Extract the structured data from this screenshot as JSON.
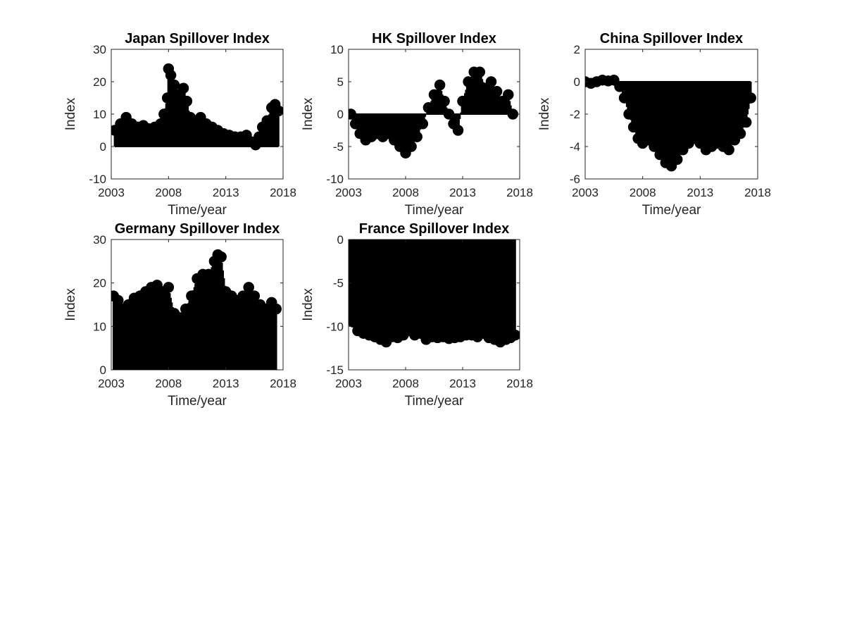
{
  "chart_data": [
    {
      "type": "scatter",
      "title": "Japan Spillover Index",
      "xlabel": "Time/year",
      "ylabel": "Index",
      "xlim": [
        2003,
        2018
      ],
      "ylim": [
        -10,
        30
      ],
      "xticks": [
        "2003",
        "2008",
        "2013",
        "2018"
      ],
      "yticks": [
        "-10",
        "0",
        "10",
        "20",
        "30"
      ],
      "baseline": 0,
      "series": [
        {
          "x": [
            2003.3,
            2003.8,
            2004.3,
            2004.8,
            2005.3,
            2005.8,
            2006.3,
            2006.8,
            2007.3,
            2007.6,
            2007.9,
            2008.0,
            2008.2,
            2008.5,
            2008.9,
            2009.3,
            2009.6,
            2009.9,
            2010.3,
            2010.8,
            2011.3,
            2011.8,
            2012.3,
            2012.8,
            2013.3,
            2013.8,
            2014.3,
            2014.8,
            2015.2,
            2015.6,
            2015.9,
            2016.2,
            2016.6,
            2017.0,
            2017.3,
            2017.6
          ],
          "y": [
            5,
            7,
            9,
            7,
            6,
            6.5,
            5.5,
            6,
            7,
            10,
            15,
            24,
            22,
            19,
            16,
            18,
            14,
            9,
            8,
            9,
            7,
            6,
            5,
            4,
            3.5,
            3,
            3,
            3.5,
            1.5,
            0.5,
            3,
            6,
            8,
            12,
            13,
            11
          ]
        }
      ]
    },
    {
      "type": "scatter",
      "title": "HK Spillover Index",
      "xlabel": "Time/year",
      "ylabel": "Index",
      "xlim": [
        2003,
        2018
      ],
      "ylim": [
        -10,
        10
      ],
      "xticks": [
        "2003",
        "2008",
        "2013",
        "2018"
      ],
      "yticks": [
        "-10",
        "-5",
        "0",
        "5",
        "10"
      ],
      "baseline": 0,
      "series": [
        {
          "x": [
            2003.2,
            2003.6,
            2004.0,
            2004.5,
            2005.0,
            2005.5,
            2006.0,
            2006.5,
            2007.0,
            2007.5,
            2008.0,
            2008.5,
            2009.0,
            2009.5,
            2010.0,
            2010.5,
            2011.0,
            2011.4,
            2011.8,
            2012.2,
            2012.6,
            2013.0,
            2013.5,
            2014.0,
            2014.5,
            2015.0,
            2015.5,
            2016.0,
            2016.5,
            2017.0,
            2017.4
          ],
          "y": [
            0,
            -1.5,
            -3,
            -4,
            -3.5,
            -3,
            -3.5,
            -3,
            -4,
            -5,
            -6,
            -5,
            -3.5,
            -1.5,
            1,
            3,
            4.5,
            2,
            0,
            -1.5,
            -2.5,
            2,
            5,
            6.5,
            6.5,
            4,
            5,
            3.5,
            2,
            3,
            0
          ]
        }
      ]
    },
    {
      "type": "scatter",
      "title": "China Spillover Index",
      "xlabel": "Time/year",
      "ylabel": "Index",
      "xlim": [
        2003,
        2018
      ],
      "ylim": [
        -6,
        2
      ],
      "xticks": [
        "2003",
        "2008",
        "2013",
        "2018"
      ],
      "yticks": [
        "-6",
        "-4",
        "-2",
        "0",
        "2"
      ],
      "baseline": 0,
      "series": [
        {
          "x": [
            2003.0,
            2003.5,
            2004.0,
            2004.5,
            2005.0,
            2005.5,
            2006.0,
            2006.4,
            2006.8,
            2007.2,
            2007.6,
            2008.0,
            2008.5,
            2009.0,
            2009.5,
            2010.0,
            2010.5,
            2011.0,
            2011.5,
            2012.0,
            2012.5,
            2013.0,
            2013.5,
            2014.0,
            2014.5,
            2015.0,
            2015.5,
            2016.0,
            2016.5,
            2017.0,
            2017.4
          ],
          "y": [
            0,
            -0.1,
            0,
            0.1,
            0.05,
            0.1,
            -0.3,
            -1,
            -2,
            -2.8,
            -3.5,
            -3.8,
            -3.6,
            -4,
            -4.5,
            -5,
            -5.2,
            -4.8,
            -4.2,
            -3.8,
            -3.5,
            -3.8,
            -4.2,
            -4,
            -3.8,
            -4,
            -4.2,
            -3.6,
            -3.2,
            -2.5,
            -1
          ]
        }
      ]
    },
    {
      "type": "scatter",
      "title": "Germany Spillover Index",
      "xlabel": "Time/year",
      "ylabel": "Index",
      "xlim": [
        2003,
        2018
      ],
      "ylim": [
        0,
        30
      ],
      "xticks": [
        "2003",
        "2008",
        "2013",
        "2018"
      ],
      "yticks": [
        "0",
        "10",
        "20",
        "30"
      ],
      "baseline": 0,
      "series": [
        {
          "x": [
            2003.2,
            2003.6,
            2004.0,
            2004.5,
            2005.0,
            2005.5,
            2006.0,
            2006.5,
            2007.0,
            2007.5,
            2008.0,
            2008.5,
            2009.0,
            2009.5,
            2010.0,
            2010.5,
            2011.0,
            2011.5,
            2012.0,
            2012.3,
            2012.6,
            2013.0,
            2013.5,
            2014.0,
            2014.5,
            2015.0,
            2015.5,
            2016.0,
            2016.5,
            2017.0,
            2017.4
          ],
          "y": [
            17,
            16,
            14,
            15,
            16.5,
            17,
            18,
            19,
            19.5,
            18,
            19,
            13,
            12,
            14,
            17,
            21,
            22,
            22,
            25,
            26.5,
            26,
            18,
            17,
            16,
            17,
            19,
            17,
            15,
            14,
            15.5,
            14
          ]
        }
      ]
    },
    {
      "type": "scatter",
      "title": "France Spillover Index",
      "xlabel": "Time/year",
      "ylabel": "Index",
      "xlim": [
        2003,
        2018
      ],
      "ylim": [
        -15,
        0
      ],
      "xticks": [
        "2003",
        "2008",
        "2013",
        "2018"
      ],
      "yticks": [
        "-15",
        "-10",
        "-5",
        "0"
      ],
      "baseline": 0,
      "series": [
        {
          "x": [
            2003.0,
            2003.4,
            2003.8,
            2004.3,
            2004.8,
            2005.3,
            2005.8,
            2006.3,
            2006.8,
            2007.3,
            2007.8,
            2008.3,
            2008.8,
            2009.3,
            2009.8,
            2010.3,
            2010.8,
            2011.3,
            2011.8,
            2012.3,
            2012.8,
            2013.3,
            2013.8,
            2014.3,
            2014.8,
            2015.3,
            2015.8,
            2016.3,
            2016.8,
            2017.2,
            2017.6
          ],
          "y": [
            -8.5,
            -9.5,
            -10.5,
            -10.8,
            -11,
            -11.2,
            -11.5,
            -11.8,
            -11.2,
            -11.3,
            -11,
            -10.5,
            -11,
            -10.8,
            -11.5,
            -11.2,
            -11.3,
            -11.2,
            -11.4,
            -11.3,
            -11.2,
            -11,
            -11,
            -11.2,
            -10.8,
            -11.3,
            -11.5,
            -11.8,
            -11.5,
            -11.3,
            -11
          ]
        }
      ]
    }
  ]
}
